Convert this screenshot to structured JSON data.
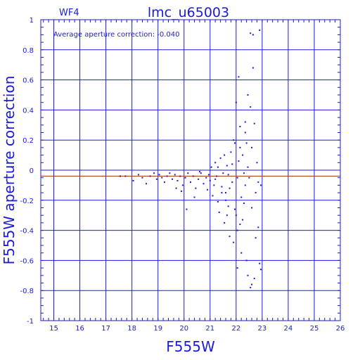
{
  "chart_data": {
    "type": "scatter",
    "title": "lmc_u65003",
    "subtitle": "WF4",
    "annotation": "Average aperture correction: -0.040",
    "xlabel": "F555W",
    "ylabel": "F555W aperture correction",
    "xlim": [
      14.5,
      26
    ],
    "ylim": [
      -1,
      1
    ],
    "xticks": [
      15,
      16,
      17,
      18,
      19,
      20,
      21,
      22,
      23,
      24,
      25,
      26
    ],
    "yticks": [
      -1,
      -0.8,
      -0.6,
      -0.4,
      -0.2,
      0,
      0.2,
      0.4,
      0.6,
      0.8,
      1
    ],
    "ytick_labels": [
      "-1",
      "-0.8",
      "-0.6",
      "-0.4",
      "-0.2",
      "0",
      "0.2",
      "0.4",
      "0.6",
      "0.8",
      "1"
    ],
    "grid": true,
    "reference_line": {
      "y": -0.04,
      "color": "#b03a1a"
    },
    "colors": {
      "axis": "#1a1adf",
      "points": "#1a1adf",
      "reference": "#b03a1a"
    },
    "points": [
      [
        17.55,
        -0.04
      ],
      [
        17.75,
        -0.04
      ],
      [
        18.05,
        -0.07
      ],
      [
        18.25,
        -0.03
      ],
      [
        18.4,
        -0.05
      ],
      [
        18.55,
        -0.09
      ],
      [
        18.7,
        -0.04
      ],
      [
        18.85,
        -0.02
      ],
      [
        18.95,
        -0.06
      ],
      [
        19.05,
        -0.03
      ],
      [
        19.15,
        -0.05
      ],
      [
        19.25,
        -0.08
      ],
      [
        19.35,
        -0.04
      ],
      [
        19.45,
        -0.02
      ],
      [
        19.55,
        -0.06
      ],
      [
        19.65,
        -0.03
      ],
      [
        19.75,
        -0.07
      ],
      [
        19.85,
        -0.04
      ],
      [
        19.95,
        -0.1
      ],
      [
        20.05,
        -0.05
      ],
      [
        19.7,
        -0.12
      ],
      [
        19.9,
        -0.14
      ],
      [
        20.15,
        -0.02
      ],
      [
        20.25,
        -0.08
      ],
      [
        20.35,
        -0.04
      ],
      [
        20.45,
        -0.12
      ],
      [
        20.55,
        -0.06
      ],
      [
        20.65,
        -0.02
      ],
      [
        20.75,
        -0.09
      ],
      [
        20.85,
        -0.05
      ],
      [
        20.1,
        -0.26
      ],
      [
        20.4,
        -0.18
      ],
      [
        20.6,
        -0.01
      ],
      [
        20.95,
        -0.03
      ],
      [
        20.9,
        -0.13
      ],
      [
        21.0,
        -0.07
      ],
      [
        21.05,
        0.02
      ],
      [
        21.1,
        -0.17
      ],
      [
        21.15,
        -0.1
      ],
      [
        21.2,
        0.05
      ],
      [
        21.25,
        -0.04
      ],
      [
        21.3,
        -0.21
      ],
      [
        21.35,
        -0.28
      ],
      [
        21.4,
        0.08
      ],
      [
        21.45,
        -0.11
      ],
      [
        21.5,
        -0.02
      ],
      [
        21.55,
        -0.35
      ],
      [
        21.6,
        -0.15
      ],
      [
        21.65,
        0.03
      ],
      [
        21.7,
        -0.24
      ],
      [
        21.75,
        -0.44
      ],
      [
        21.8,
        0.12
      ],
      [
        21.85,
        -0.08
      ],
      [
        21.9,
        -0.48
      ],
      [
        21.95,
        0.18
      ],
      [
        22.0,
        -0.3
      ],
      [
        22.05,
        -0.05
      ],
      [
        22.1,
        0.06
      ],
      [
        22.15,
        -0.36
      ],
      [
        22.2,
        -0.18
      ],
      [
        22.0,
        0.45
      ],
      [
        22.05,
        -0.65
      ],
      [
        22.1,
        0.62
      ],
      [
        22.15,
        0.29
      ],
      [
        22.2,
        -0.55
      ],
      [
        22.25,
        0.1
      ],
      [
        22.3,
        -0.22
      ],
      [
        22.35,
        0.25
      ],
      [
        22.4,
        -0.6
      ],
      [
        22.45,
        0.5
      ],
      [
        22.5,
        -0.05
      ],
      [
        22.55,
        0.42
      ],
      [
        22.6,
        -0.76
      ],
      [
        22.65,
        0.68
      ],
      [
        22.7,
        0.31
      ],
      [
        22.55,
        0.91
      ],
      [
        22.65,
        0.9
      ],
      [
        22.9,
        0.93
      ],
      [
        22.75,
        -0.45
      ],
      [
        22.8,
        0.05
      ],
      [
        22.35,
        0.32
      ],
      [
        22.45,
        -0.7
      ],
      [
        22.55,
        -0.78
      ],
      [
        22.7,
        -0.72
      ],
      [
        22.95,
        -0.66
      ],
      [
        22.9,
        -0.62
      ],
      [
        22.85,
        -0.38
      ],
      [
        22.6,
        0.15
      ],
      [
        22.4,
        0.18
      ],
      [
        22.3,
        -0.02
      ],
      [
        21.7,
        -0.03
      ],
      [
        21.85,
        0.04
      ],
      [
        21.55,
        0.1
      ],
      [
        21.3,
        0.02
      ],
      [
        21.2,
        -0.06
      ],
      [
        21.6,
        -0.2
      ],
      [
        21.75,
        -0.12
      ],
      [
        21.95,
        -0.26
      ],
      [
        22.05,
        -0.4
      ],
      [
        22.25,
        -0.33
      ],
      [
        22.35,
        -0.1
      ],
      [
        22.45,
        0.02
      ],
      [
        22.6,
        -0.25
      ],
      [
        22.75,
        -0.15
      ],
      [
        22.85,
        -0.08
      ],
      [
        22.95,
        -0.1
      ],
      [
        22.15,
        0.15
      ],
      [
        21.9,
        0.2
      ],
      [
        21.65,
        -0.3
      ],
      [
        21.45,
        -0.15
      ]
    ]
  }
}
